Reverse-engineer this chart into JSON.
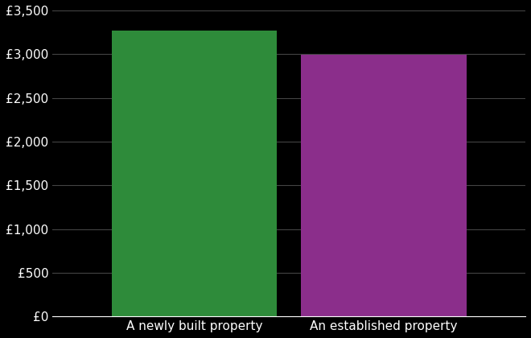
{
  "categories": [
    "A newly built property",
    "An established property"
  ],
  "values": [
    3270,
    2990
  ],
  "bar_colors": [
    "#2e8b3a",
    "#8b2e8b"
  ],
  "background_color": "#000000",
  "text_color": "#ffffff",
  "grid_color": "#444444",
  "ylim": [
    0,
    3500
  ],
  "yticks": [
    0,
    500,
    1000,
    1500,
    2000,
    2500,
    3000,
    3500
  ],
  "ytick_labels": [
    "£0",
    "£500",
    "£1,000",
    "£1,500",
    "£2,000",
    "£2,500",
    "£3,000",
    "£3,500"
  ],
  "bar_width": 0.35,
  "x_positions": [
    0.3,
    0.7
  ],
  "xlim": [
    0,
    1
  ],
  "figsize": [
    6.6,
    4.2
  ],
  "dpi": 100
}
